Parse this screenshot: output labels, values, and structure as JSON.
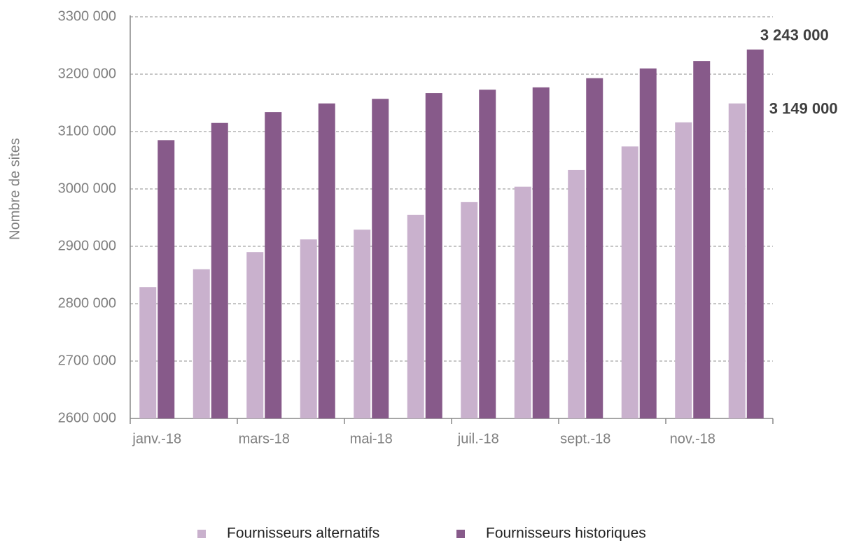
{
  "chart_data": {
    "type": "bar",
    "y_label": "Nombre de sites",
    "categories": [
      "janv.-18",
      null,
      "mars-18",
      null,
      "mai-18",
      null,
      "juil.-18",
      null,
      "sept.-18",
      null,
      "nov.-18",
      null
    ],
    "series": [
      {
        "name": "Fournisseurs alternatifs",
        "color": "#c9b1cd",
        "values": [
          2829000,
          2860000,
          2890000,
          2912000,
          2929000,
          2955000,
          2977000,
          3004000,
          3033000,
          3074000,
          3116000,
          3149000
        ],
        "value_labels": [
          null,
          null,
          null,
          null,
          null,
          null,
          null,
          null,
          null,
          null,
          null,
          "3 149 000"
        ]
      },
      {
        "name": "Fournisseurs historiques",
        "color": "#875a8a",
        "values": [
          3085000,
          3115000,
          3134000,
          3149000,
          3157000,
          3167000,
          3173000,
          3177000,
          3193000,
          3210000,
          3223000,
          3243000
        ],
        "value_labels": [
          null,
          null,
          null,
          null,
          null,
          null,
          null,
          null,
          null,
          null,
          null,
          "3 243 000"
        ]
      }
    ],
    "ylim": [
      2600000,
      3300000
    ],
    "yticks": [
      {
        "value": 2600000,
        "label": "2600 000"
      },
      {
        "value": 2700000,
        "label": "2700 000"
      },
      {
        "value": 2800000,
        "label": "2800 000"
      },
      {
        "value": 2900000,
        "label": "2900 000"
      },
      {
        "value": 3000000,
        "label": "3000 000"
      },
      {
        "value": 3100000,
        "label": "3100 000"
      },
      {
        "value": 3200000,
        "label": "3200 000"
      },
      {
        "value": 3300000,
        "label": "3300 000"
      }
    ],
    "grid": true,
    "legend": "bottom"
  }
}
